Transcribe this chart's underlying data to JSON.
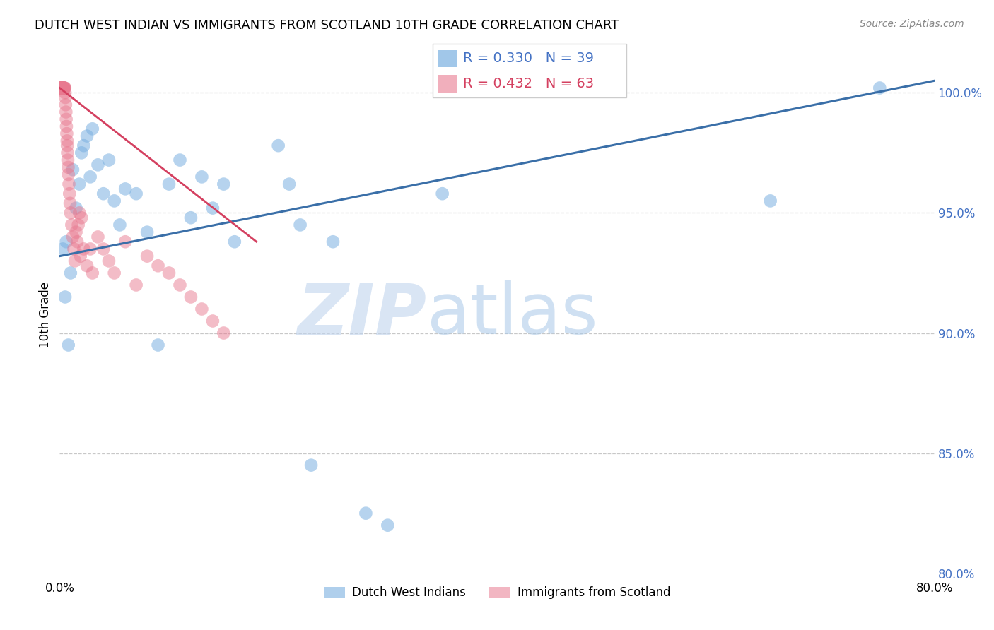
{
  "title": "DUTCH WEST INDIAN VS IMMIGRANTS FROM SCOTLAND 10TH GRADE CORRELATION CHART",
  "source": "Source: ZipAtlas.com",
  "ylabel": "10th Grade",
  "x_tick_labels": [
    "0.0%",
    "",
    "",
    "",
    "",
    "",
    "",
    "",
    "80.0%"
  ],
  "y_tick_labels": [
    "80.0%",
    "85.0%",
    "90.0%",
    "95.0%",
    "100.0%"
  ],
  "xlim": [
    0.0,
    80.0
  ],
  "ylim": [
    80.0,
    101.5
  ],
  "x_ticks": [
    0.0,
    10.0,
    20.0,
    30.0,
    40.0,
    50.0,
    60.0,
    70.0,
    80.0
  ],
  "y_ticks": [
    80.0,
    85.0,
    90.0,
    95.0,
    100.0
  ],
  "blue_color": "#7ab0e0",
  "pink_color": "#e87a90",
  "blue_line_color": "#3a6fa8",
  "pink_line_color": "#d44060",
  "legend_blue_label": "Dutch West Indians",
  "legend_pink_label": "Immigrants from Scotland",
  "blue_x": [
    0.3,
    0.5,
    0.6,
    0.8,
    1.0,
    1.2,
    1.5,
    1.8,
    2.0,
    2.2,
    2.5,
    2.8,
    3.0,
    3.5,
    4.0,
    4.5,
    5.0,
    5.5,
    6.0,
    7.0,
    8.0,
    9.0,
    10.0,
    11.0,
    12.0,
    13.0,
    14.0,
    15.0,
    16.0,
    20.0,
    21.0,
    22.0,
    23.0,
    25.0,
    28.0,
    30.0,
    35.0,
    65.0,
    75.0
  ],
  "blue_y": [
    93.5,
    91.5,
    93.8,
    89.5,
    92.5,
    96.8,
    95.2,
    96.2,
    97.5,
    97.8,
    98.2,
    96.5,
    98.5,
    97.0,
    95.8,
    97.2,
    95.5,
    94.5,
    96.0,
    95.8,
    94.2,
    89.5,
    96.2,
    97.2,
    94.8,
    96.5,
    95.2,
    96.2,
    93.8,
    97.8,
    96.2,
    94.5,
    84.5,
    93.8,
    82.5,
    82.0,
    95.8,
    95.5,
    100.2
  ],
  "pink_x": [
    0.05,
    0.08,
    0.1,
    0.12,
    0.15,
    0.18,
    0.2,
    0.22,
    0.25,
    0.28,
    0.3,
    0.32,
    0.35,
    0.38,
    0.4,
    0.42,
    0.45,
    0.48,
    0.5,
    0.52,
    0.55,
    0.58,
    0.6,
    0.62,
    0.65,
    0.68,
    0.7,
    0.72,
    0.75,
    0.78,
    0.8,
    0.85,
    0.9,
    0.95,
    1.0,
    1.1,
    1.2,
    1.3,
    1.4,
    1.5,
    1.6,
    1.7,
    1.8,
    1.9,
    2.0,
    2.2,
    2.5,
    2.8,
    3.0,
    3.5,
    4.0,
    4.5,
    5.0,
    6.0,
    7.0,
    8.0,
    9.0,
    10.0,
    11.0,
    12.0,
    13.0,
    14.0,
    15.0
  ],
  "pink_y": [
    100.2,
    100.2,
    100.2,
    100.2,
    100.2,
    100.2,
    100.2,
    100.2,
    100.2,
    100.2,
    100.2,
    100.2,
    100.2,
    100.2,
    100.2,
    100.2,
    100.2,
    100.2,
    100.0,
    99.8,
    99.5,
    99.2,
    98.9,
    98.6,
    98.3,
    98.0,
    97.8,
    97.5,
    97.2,
    96.9,
    96.6,
    96.2,
    95.8,
    95.4,
    95.0,
    94.5,
    94.0,
    93.5,
    93.0,
    94.2,
    93.8,
    94.5,
    95.0,
    93.2,
    94.8,
    93.5,
    92.8,
    93.5,
    92.5,
    94.0,
    93.5,
    93.0,
    92.5,
    93.8,
    92.0,
    93.2,
    92.8,
    92.5,
    92.0,
    91.5,
    91.0,
    90.5,
    90.0
  ],
  "blue_trend_x": [
    0,
    80
  ],
  "blue_trend_y": [
    93.2,
    100.5
  ],
  "pink_trend_x": [
    0,
    18
  ],
  "pink_trend_y": [
    100.2,
    93.8
  ],
  "watermark_zip": "ZIP",
  "watermark_atlas": "atlas",
  "grid_color": "#bbbbbb",
  "background_color": "#ffffff"
}
